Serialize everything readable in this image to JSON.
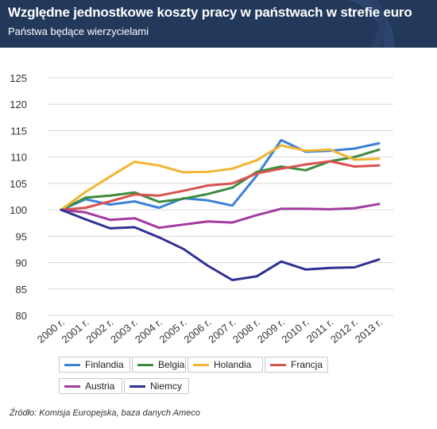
{
  "header": {
    "title": "Względne jednostkowe koszty pracy w państwach w strefie euro",
    "subtitle": "Państwa będące wierzycielami",
    "background": "#23395b"
  },
  "source": "Źródło: Komisja Europejska, baza danych Ameco",
  "chart_data": {
    "type": "line",
    "title": "Względne jednostkowe koszty pracy w państwach w strefie euro",
    "subtitle": "Państwa będące wierzycielami",
    "categories": [
      "2000 r.",
      "2001 r.",
      "2002 r.",
      "2003 r.",
      "2004 r.",
      "2005 r.",
      "2006 r.",
      "2007 r.",
      "2008 r.",
      "2009 r.",
      "2010 r.",
      "2011 r.",
      "2012 r.",
      "2013 r."
    ],
    "ylim": [
      80,
      125
    ],
    "yticks": [
      80,
      85,
      90,
      95,
      100,
      105,
      110,
      115,
      120,
      125
    ],
    "grid": true,
    "legend_position": "bottom",
    "series": [
      {
        "name": "Finlandia",
        "color": "#3b82d6",
        "values": [
          100,
          102.0,
          101.0,
          101.6,
          100.4,
          102.2,
          101.8,
          100.8,
          106.5,
          113.2,
          111.0,
          111.2,
          111.6,
          112.6
        ]
      },
      {
        "name": "Belgia",
        "color": "#3d8c3d",
        "values": [
          100,
          102.3,
          102.7,
          103.3,
          101.5,
          102.1,
          103.0,
          104.2,
          107.2,
          108.2,
          107.5,
          109.2,
          110.0,
          111.4
        ]
      },
      {
        "name": "Holandia",
        "color": "#f2b531",
        "values": [
          100,
          103.4,
          106.3,
          109.1,
          108.4,
          107.1,
          107.2,
          107.8,
          109.4,
          112.2,
          111.2,
          111.4,
          109.5,
          109.7
        ]
      },
      {
        "name": "Francja",
        "color": "#d9534f",
        "values": [
          100,
          100.4,
          101.6,
          102.9,
          102.7,
          103.6,
          104.6,
          105.0,
          106.9,
          107.8,
          108.6,
          109.2,
          108.2,
          108.4
        ]
      },
      {
        "name": "Austria",
        "color": "#a23ba0",
        "values": [
          100,
          99.5,
          98.1,
          98.4,
          96.6,
          97.2,
          97.8,
          97.6,
          99.0,
          100.2,
          100.2,
          100.1,
          100.3,
          101.1
        ]
      },
      {
        "name": "Niemcy",
        "color": "#2e3192",
        "values": [
          100,
          98.2,
          96.5,
          96.7,
          94.8,
          92.6,
          89.4,
          86.7,
          87.4,
          90.2,
          88.7,
          89.0,
          89.1,
          90.6
        ]
      }
    ]
  }
}
